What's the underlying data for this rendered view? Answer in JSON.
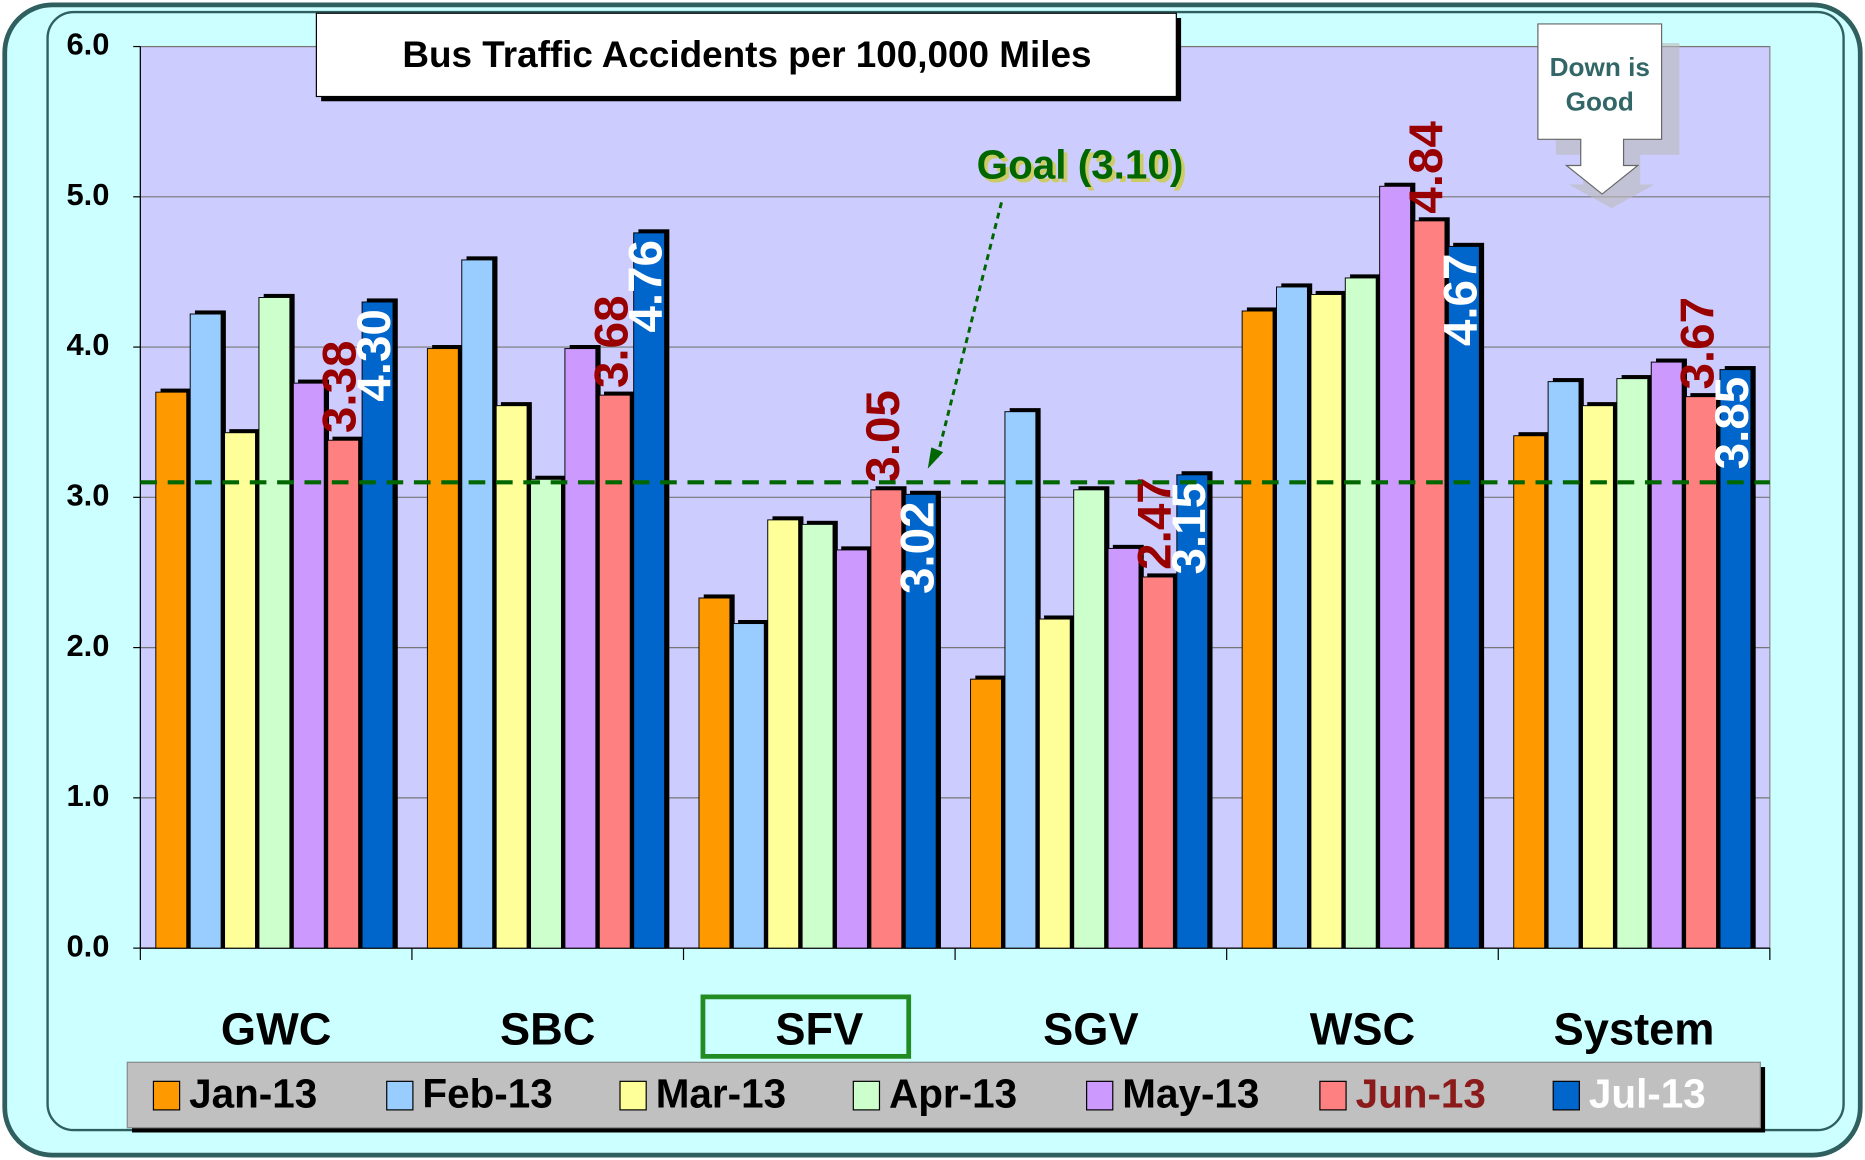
{
  "chart_data": {
    "type": "bar",
    "title": "Bus Traffic Accidents per 100,000 Miles",
    "categories": [
      "GWC",
      "SBC",
      "SFV",
      "SGV",
      "WSC",
      "System"
    ],
    "series": [
      {
        "name": "Jan-13",
        "color": "#FF9900",
        "values": [
          3.7,
          3.99,
          2.33,
          1.79,
          4.24,
          3.41
        ]
      },
      {
        "name": "Feb-13",
        "color": "#99CCFF",
        "values": [
          4.22,
          4.58,
          2.16,
          3.57,
          4.4,
          3.77
        ]
      },
      {
        "name": "Mar-13",
        "color": "#FFFF99",
        "values": [
          3.43,
          3.61,
          2.85,
          2.19,
          4.35,
          3.61
        ]
      },
      {
        "name": "Apr-13",
        "color": "#CCFFCC",
        "values": [
          4.33,
          3.12,
          2.82,
          3.05,
          4.46,
          3.79
        ]
      },
      {
        "name": "May-13",
        "color": "#CC99FF",
        "values": [
          3.76,
          3.99,
          2.65,
          2.66,
          5.07,
          3.9
        ]
      },
      {
        "name": "Jun-13",
        "color": "#FF8080",
        "label_color": "#990000",
        "legend_text_color": "#8B1A1A",
        "values": [
          3.38,
          3.68,
          3.05,
          2.47,
          4.84,
          3.67
        ],
        "value_labels": [
          "3.38",
          "3.68",
          "3.05",
          "2.47",
          "4.84",
          "3.67"
        ]
      },
      {
        "name": "Jul-13",
        "color": "#0066CC",
        "label_color": "#FFFFFF",
        "legend_text_color": "#FFFFFF",
        "values": [
          4.3,
          4.76,
          3.02,
          3.15,
          4.67,
          3.85
        ],
        "value_labels": [
          "4.30",
          "4.76",
          "3.02",
          "3.15",
          "4.67",
          "3.85"
        ]
      }
    ],
    "ylim": [
      0,
      6
    ],
    "yticks": [
      {
        "value": 0,
        "label": "0.0"
      },
      {
        "value": 1,
        "label": "1.0"
      },
      {
        "value": 2,
        "label": "2.0"
      },
      {
        "value": 3,
        "label": "3.0"
      },
      {
        "value": 4,
        "label": "4.0"
      },
      {
        "value": 5,
        "label": "5.0"
      },
      {
        "value": 6,
        "label": "6.0"
      }
    ],
    "grid": true,
    "goal": {
      "value": 3.1,
      "label": "Goal (3.10)",
      "color": "#006600"
    },
    "annotation": "Down is Good",
    "highlight_category": "SFV"
  }
}
